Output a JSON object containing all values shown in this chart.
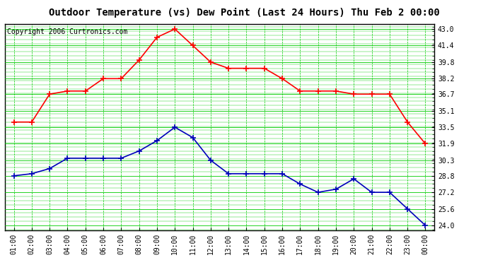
{
  "title": "Outdoor Temperature (vs) Dew Point (Last 24 Hours) Thu Feb 2 00:00",
  "copyright": "Copyright 2006 Curtronics.com",
  "x_labels": [
    "01:00",
    "02:00",
    "03:00",
    "04:00",
    "05:00",
    "06:00",
    "07:00",
    "08:00",
    "09:00",
    "10:00",
    "11:00",
    "12:00",
    "13:00",
    "14:00",
    "15:00",
    "16:00",
    "17:00",
    "18:00",
    "19:00",
    "20:00",
    "21:00",
    "22:00",
    "23:00",
    "00:00"
  ],
  "temp_data": [
    34.0,
    34.0,
    36.7,
    37.0,
    37.0,
    38.2,
    38.2,
    40.0,
    42.2,
    43.0,
    41.4,
    39.8,
    39.2,
    39.2,
    39.2,
    38.2,
    37.0,
    37.0,
    37.0,
    36.7,
    36.7,
    36.7,
    34.0,
    31.9
  ],
  "dew_data": [
    28.8,
    29.0,
    29.5,
    30.5,
    30.5,
    30.5,
    30.5,
    31.2,
    32.2,
    33.5,
    32.5,
    30.3,
    29.0,
    29.0,
    29.0,
    29.0,
    28.0,
    27.2,
    27.5,
    28.5,
    27.2,
    27.2,
    25.6,
    24.0
  ],
  "temp_color": "#FF0000",
  "dew_color": "#0000BB",
  "bg_color": "#FFFFFF",
  "plot_bg_color": "#FFFFFF",
  "grid_color": "#00CC00",
  "y_ticks": [
    24.0,
    25.6,
    27.2,
    28.8,
    30.3,
    31.9,
    33.5,
    35.1,
    36.7,
    38.2,
    39.8,
    41.4,
    43.0
  ],
  "ylim_min": 23.5,
  "ylim_max": 43.5,
  "title_fontsize": 10,
  "copyright_fontsize": 7,
  "tick_fontsize": 7,
  "marker_size": 4,
  "line_width": 1.2
}
